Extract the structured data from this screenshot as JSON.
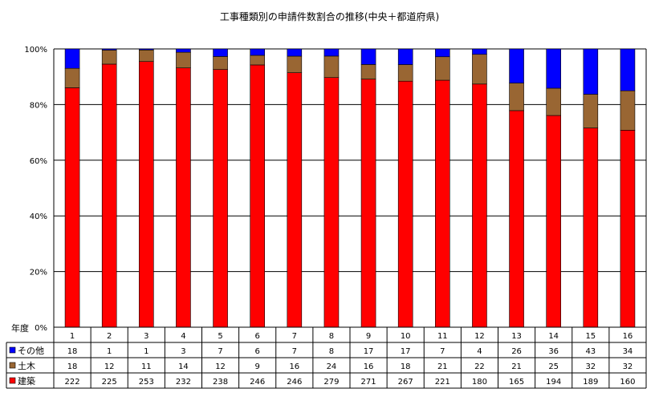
{
  "chart_data": {
    "type": "bar",
    "stacked": true,
    "normalized": true,
    "title": "工事種類別の申請件数割合の推移(中央＋都道府県)",
    "x_header": "年度",
    "categories": [
      "1",
      "2",
      "3",
      "4",
      "5",
      "6",
      "7",
      "8",
      "9",
      "10",
      "11",
      "12",
      "13",
      "14",
      "15",
      "16"
    ],
    "series": [
      {
        "name": "建築",
        "color": "#ff0000",
        "values": [
          222,
          225,
          253,
          232,
          238,
          246,
          246,
          279,
          271,
          267,
          221,
          180,
          165,
          194,
          189,
          160
        ]
      },
      {
        "name": "土木",
        "color": "#996633",
        "values": [
          18,
          12,
          11,
          14,
          12,
          9,
          16,
          24,
          16,
          18,
          21,
          22,
          21,
          25,
          32,
          32
        ]
      },
      {
        "name": "その他",
        "color": "#0000ff",
        "values": [
          18,
          1,
          1,
          3,
          7,
          6,
          7,
          8,
          17,
          17,
          7,
          4,
          26,
          36,
          43,
          34
        ]
      }
    ],
    "y_ticks": [
      "0%",
      "20%",
      "40%",
      "60%",
      "80%",
      "100%"
    ],
    "ylim": [
      0,
      100
    ],
    "grid": true,
    "legend": "data-table"
  }
}
